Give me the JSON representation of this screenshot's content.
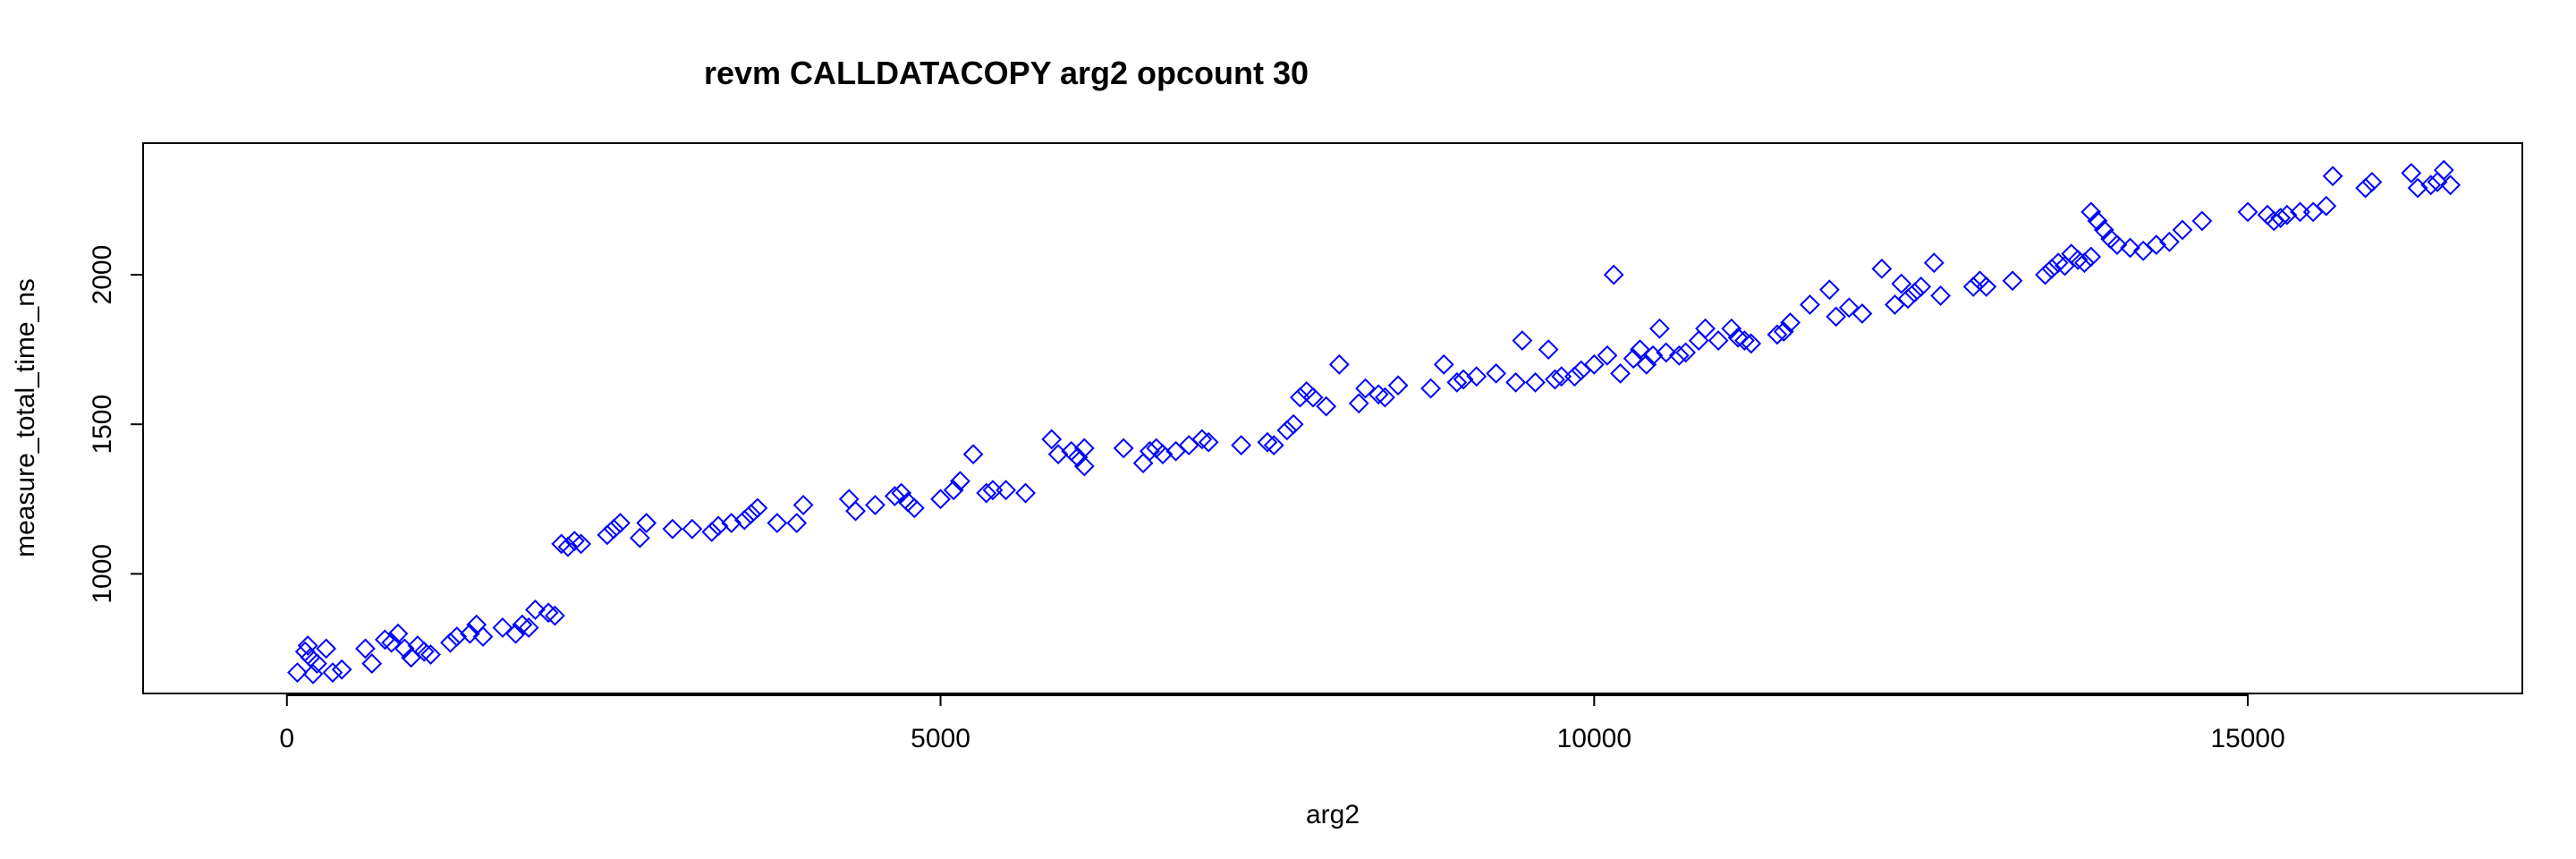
{
  "chart_data": {
    "type": "scatter",
    "title": "revm CALLDATACOPY arg2 opcount 30",
    "xlabel": "arg2",
    "ylabel": "measure_total_time_ns",
    "xlim": [
      -1100,
      17100
    ],
    "ylim": [
      600,
      2440
    ],
    "x_ticks": [
      0,
      5000,
      10000,
      15000
    ],
    "y_ticks": [
      1000,
      1500,
      2000
    ],
    "marker": "diamond-open",
    "color": "#0000ff",
    "points": [
      [
        80,
        670
      ],
      [
        140,
        740
      ],
      [
        160,
        760
      ],
      [
        180,
        720
      ],
      [
        200,
        665
      ],
      [
        230,
        700
      ],
      [
        300,
        750
      ],
      [
        350,
        670
      ],
      [
        420,
        680
      ],
      [
        600,
        750
      ],
      [
        650,
        700
      ],
      [
        750,
        780
      ],
      [
        800,
        770
      ],
      [
        850,
        800
      ],
      [
        900,
        750
      ],
      [
        950,
        720
      ],
      [
        1000,
        760
      ],
      [
        1050,
        740
      ],
      [
        1100,
        730
      ],
      [
        1250,
        770
      ],
      [
        1300,
        790
      ],
      [
        1400,
        800
      ],
      [
        1450,
        830
      ],
      [
        1500,
        790
      ],
      [
        1650,
        820
      ],
      [
        1750,
        800
      ],
      [
        1800,
        830
      ],
      [
        1850,
        820
      ],
      [
        1900,
        880
      ],
      [
        2000,
        870
      ],
      [
        2050,
        860
      ],
      [
        2100,
        1100
      ],
      [
        2150,
        1090
      ],
      [
        2200,
        1110
      ],
      [
        2250,
        1100
      ],
      [
        2450,
        1130
      ],
      [
        2500,
        1150
      ],
      [
        2550,
        1170
      ],
      [
        2700,
        1120
      ],
      [
        2750,
        1170
      ],
      [
        2950,
        1150
      ],
      [
        3100,
        1150
      ],
      [
        3250,
        1140
      ],
      [
        3300,
        1160
      ],
      [
        3400,
        1170
      ],
      [
        3500,
        1180
      ],
      [
        3550,
        1200
      ],
      [
        3600,
        1220
      ],
      [
        3750,
        1170
      ],
      [
        3900,
        1170
      ],
      [
        3950,
        1230
      ],
      [
        4300,
        1250
      ],
      [
        4350,
        1210
      ],
      [
        4500,
        1230
      ],
      [
        4650,
        1260
      ],
      [
        4700,
        1270
      ],
      [
        4750,
        1240
      ],
      [
        4800,
        1220
      ],
      [
        5000,
        1250
      ],
      [
        5100,
        1280
      ],
      [
        5150,
        1310
      ],
      [
        5250,
        1400
      ],
      [
        5350,
        1270
      ],
      [
        5400,
        1280
      ],
      [
        5500,
        1280
      ],
      [
        5650,
        1270
      ],
      [
        5850,
        1450
      ],
      [
        5900,
        1400
      ],
      [
        6000,
        1410
      ],
      [
        6050,
        1390
      ],
      [
        6100,
        1360
      ],
      [
        6100,
        1420
      ],
      [
        6400,
        1420
      ],
      [
        6550,
        1370
      ],
      [
        6600,
        1410
      ],
      [
        6650,
        1420
      ],
      [
        6700,
        1400
      ],
      [
        6800,
        1410
      ],
      [
        6900,
        1430
      ],
      [
        7000,
        1450
      ],
      [
        7050,
        1440
      ],
      [
        7300,
        1430
      ],
      [
        7500,
        1440
      ],
      [
        7550,
        1430
      ],
      [
        7650,
        1480
      ],
      [
        7700,
        1500
      ],
      [
        7750,
        1590
      ],
      [
        7800,
        1610
      ],
      [
        7850,
        1590
      ],
      [
        7950,
        1560
      ],
      [
        8050,
        1700
      ],
      [
        8200,
        1570
      ],
      [
        8250,
        1620
      ],
      [
        8350,
        1600
      ],
      [
        8400,
        1590
      ],
      [
        8500,
        1630
      ],
      [
        8750,
        1620
      ],
      [
        8850,
        1700
      ],
      [
        8950,
        1640
      ],
      [
        9000,
        1650
      ],
      [
        9100,
        1660
      ],
      [
        9250,
        1670
      ],
      [
        9400,
        1640
      ],
      [
        9450,
        1780
      ],
      [
        9550,
        1640
      ],
      [
        9650,
        1750
      ],
      [
        9700,
        1650
      ],
      [
        9750,
        1660
      ],
      [
        9850,
        1660
      ],
      [
        9900,
        1680
      ],
      [
        10000,
        1700
      ],
      [
        10100,
        1730
      ],
      [
        10150,
        2000
      ],
      [
        10200,
        1670
      ],
      [
        10300,
        1720
      ],
      [
        10350,
        1750
      ],
      [
        10400,
        1700
      ],
      [
        10450,
        1730
      ],
      [
        10500,
        1820
      ],
      [
        10550,
        1740
      ],
      [
        10650,
        1730
      ],
      [
        10700,
        1740
      ],
      [
        10800,
        1780
      ],
      [
        10850,
        1820
      ],
      [
        10950,
        1780
      ],
      [
        11050,
        1820
      ],
      [
        11100,
        1790
      ],
      [
        11150,
        1780
      ],
      [
        11200,
        1770
      ],
      [
        11400,
        1800
      ],
      [
        11450,
        1810
      ],
      [
        11500,
        1840
      ],
      [
        11650,
        1900
      ],
      [
        11800,
        1950
      ],
      [
        11850,
        1860
      ],
      [
        11950,
        1890
      ],
      [
        12050,
        1870
      ],
      [
        12200,
        2020
      ],
      [
        12300,
        1900
      ],
      [
        12350,
        1970
      ],
      [
        12400,
        1920
      ],
      [
        12450,
        1940
      ],
      [
        12500,
        1960
      ],
      [
        12600,
        2040
      ],
      [
        12650,
        1930
      ],
      [
        12900,
        1960
      ],
      [
        12950,
        1980
      ],
      [
        13000,
        1960
      ],
      [
        13200,
        1980
      ],
      [
        13450,
        2000
      ],
      [
        13500,
        2020
      ],
      [
        13550,
        2040
      ],
      [
        13600,
        2030
      ],
      [
        13650,
        2070
      ],
      [
        13700,
        2050
      ],
      [
        13750,
        2040
      ],
      [
        13800,
        2060
      ],
      [
        13800,
        2210
      ],
      [
        13850,
        2180
      ],
      [
        13900,
        2150
      ],
      [
        13950,
        2120
      ],
      [
        14000,
        2100
      ],
      [
        14100,
        2090
      ],
      [
        14200,
        2080
      ],
      [
        14300,
        2100
      ],
      [
        14400,
        2110
      ],
      [
        14500,
        2150
      ],
      [
        14650,
        2180
      ],
      [
        15000,
        2210
      ],
      [
        15150,
        2200
      ],
      [
        15200,
        2180
      ],
      [
        15250,
        2190
      ],
      [
        15300,
        2200
      ],
      [
        15400,
        2210
      ],
      [
        15500,
        2210
      ],
      [
        15600,
        2230
      ],
      [
        15650,
        2330
      ],
      [
        15900,
        2290
      ],
      [
        15950,
        2310
      ],
      [
        16250,
        2340
      ],
      [
        16300,
        2290
      ],
      [
        16400,
        2300
      ],
      [
        16450,
        2310
      ],
      [
        16500,
        2350
      ],
      [
        16550,
        2300
      ]
    ]
  }
}
